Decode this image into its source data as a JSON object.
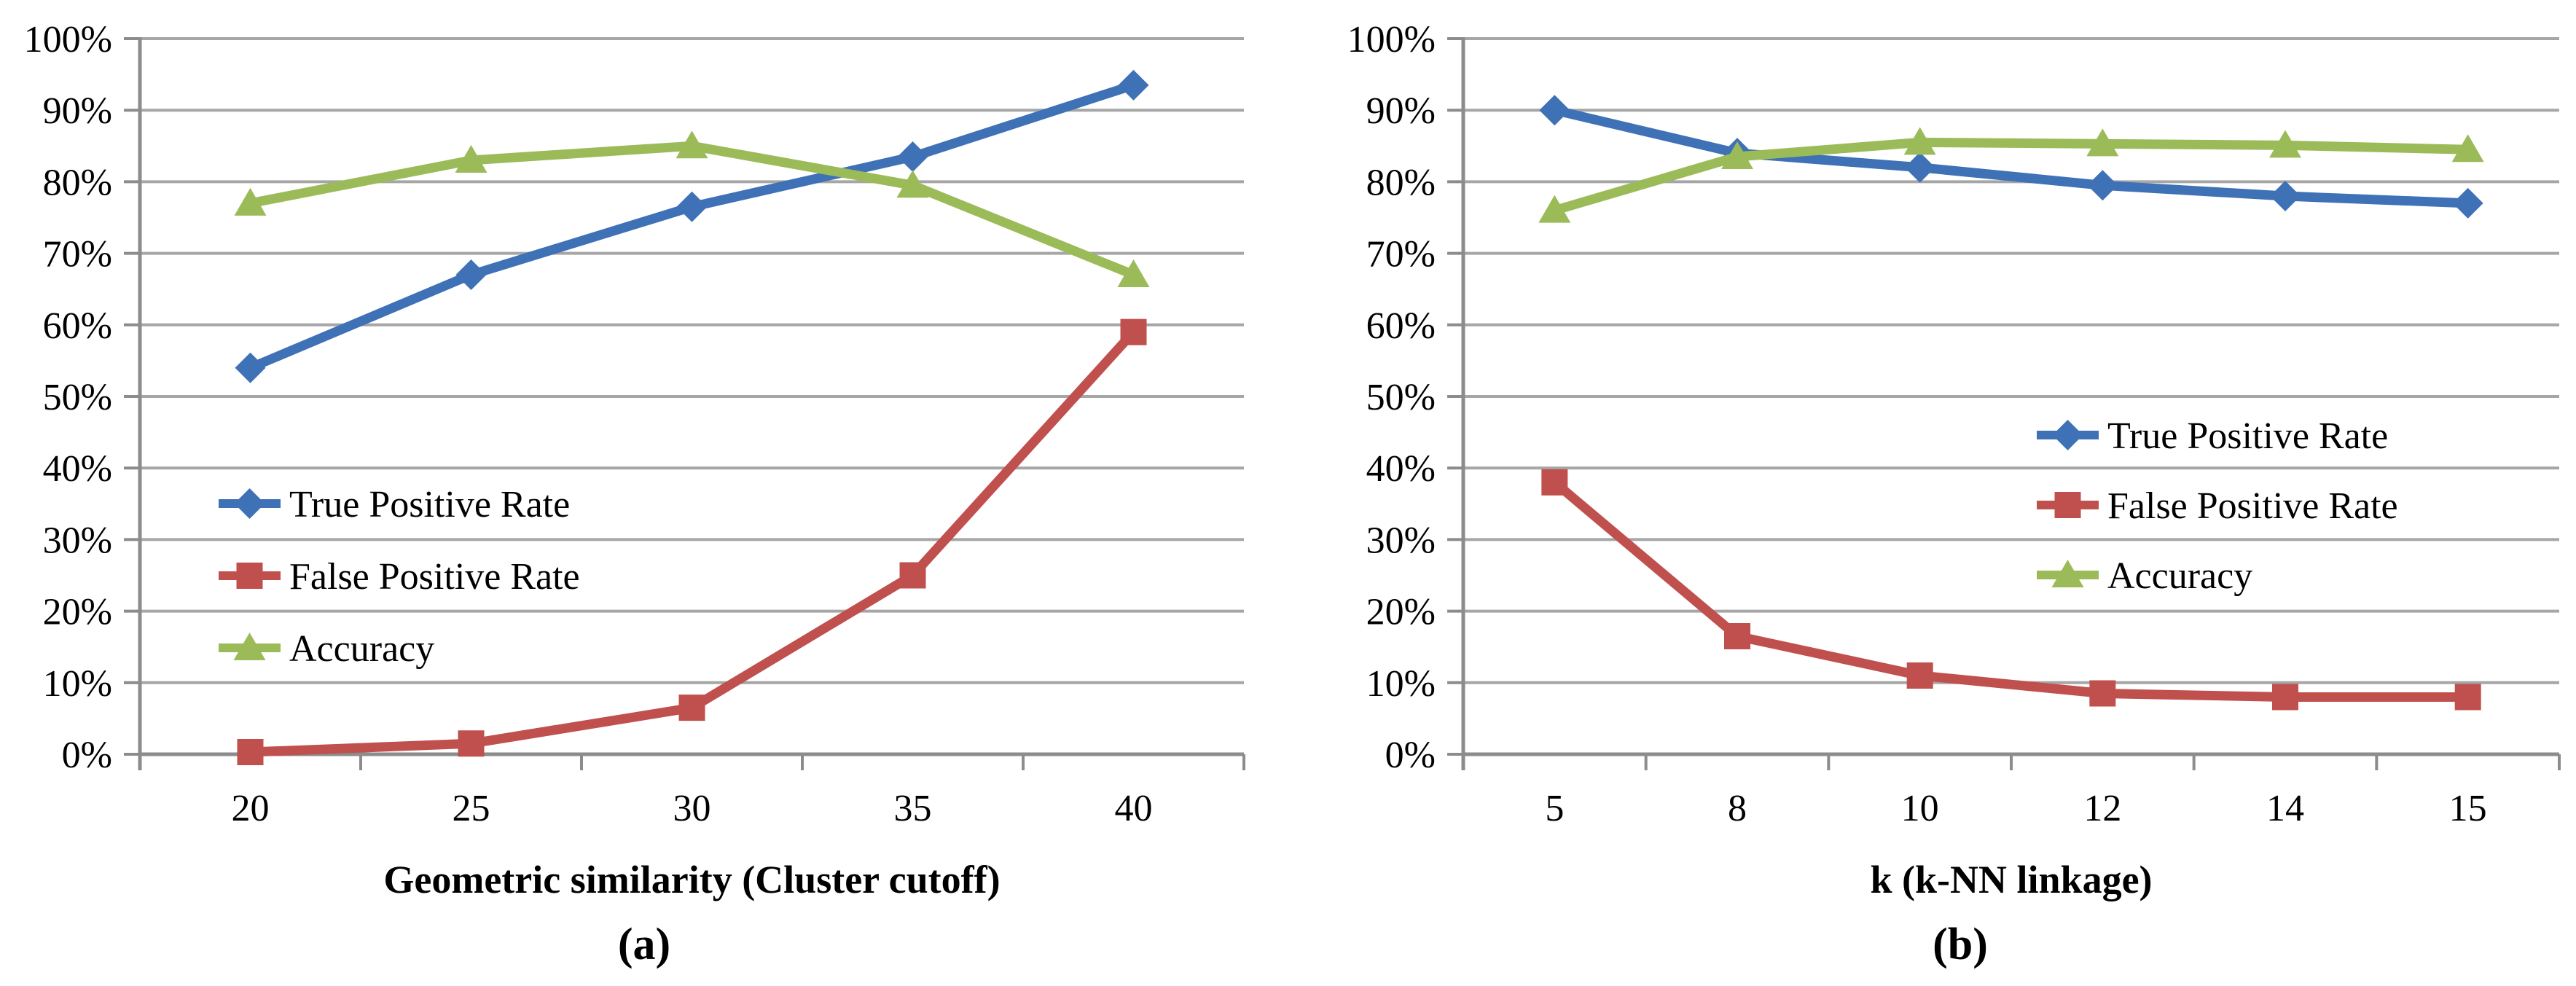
{
  "figure": {
    "background": "#ffffff",
    "text_color": "#000000",
    "grid_color": "#a6a6a6",
    "axis_color": "#8c8c8c"
  },
  "chart_data": [
    {
      "type": "line",
      "caption": "(a)",
      "xlabel": "Geometric similarity (Cluster cutoff)",
      "ylabel": "",
      "categories": [
        "20",
        "25",
        "30",
        "35",
        "40"
      ],
      "ylim": [
        0,
        100
      ],
      "y_tick_step": 10,
      "y_tick_labels": [
        "0%",
        "10%",
        "20%",
        "30%",
        "40%",
        "50%",
        "60%",
        "70%",
        "80%",
        "90%",
        "100%"
      ],
      "grid": true,
      "legend_position": "inside-center-left",
      "series": [
        {
          "name": "True Positive Rate",
          "marker": "diamond",
          "color": "#3e71b5",
          "values": [
            54,
            67,
            76.5,
            83.5,
            93.5
          ]
        },
        {
          "name": "False Positive Rate",
          "marker": "square",
          "color": "#c0504d",
          "values": [
            0.3,
            1.5,
            6.5,
            25,
            59
          ]
        },
        {
          "name": "Accuracy",
          "marker": "triangle",
          "color": "#9bbb59",
          "values": [
            77,
            83,
            85,
            79.5,
            67
          ]
        }
      ]
    },
    {
      "type": "line",
      "caption": "(b)",
      "xlabel": "k (k-NN linkage)",
      "ylabel": "",
      "categories": [
        "5",
        "8",
        "10",
        "12",
        "14",
        "15"
      ],
      "ylim": [
        0,
        100
      ],
      "y_tick_step": 10,
      "y_tick_labels": [
        "0%",
        "10%",
        "20%",
        "30%",
        "40%",
        "50%",
        "60%",
        "70%",
        "80%",
        "90%",
        "100%"
      ],
      "grid": true,
      "legend_position": "inside-center-right",
      "series": [
        {
          "name": "True Positive Rate",
          "marker": "diamond",
          "color": "#3e71b5",
          "values": [
            90,
            84,
            82,
            79.5,
            78,
            77
          ]
        },
        {
          "name": "False Positive Rate",
          "marker": "square",
          "color": "#c0504d",
          "values": [
            38,
            16.5,
            11,
            8.5,
            8,
            8
          ]
        },
        {
          "name": "Accuracy",
          "marker": "triangle",
          "color": "#9bbb59",
          "values": [
            76,
            83.5,
            85.5,
            85.3,
            85.1,
            84.5
          ]
        }
      ]
    }
  ]
}
